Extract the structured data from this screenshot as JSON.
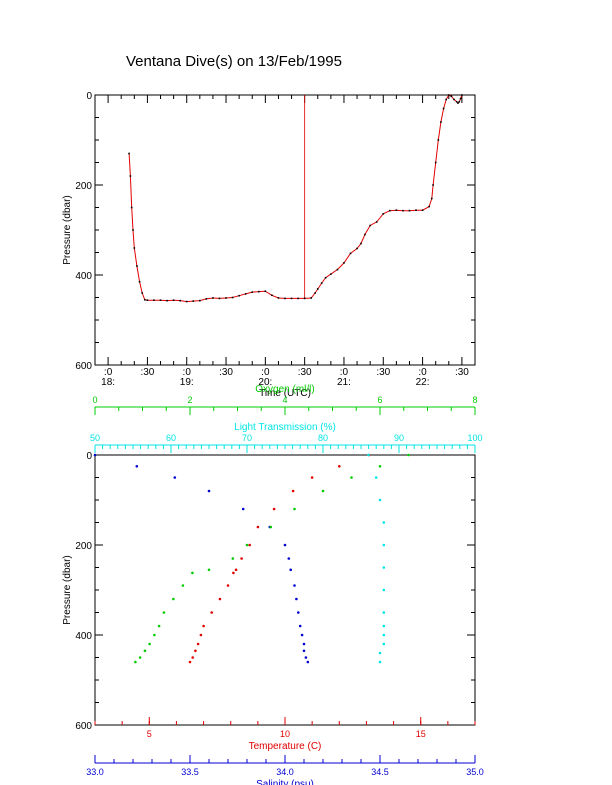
{
  "title": "Ventana Dive(s) on 13/Feb/1995",
  "colors": {
    "axis": "#000000",
    "temperature": "#e00000",
    "salinity": "#0000d0",
    "oxygen": "#00cc00",
    "transmission": "#00e5e5",
    "timeseries_line": "#e00000",
    "timeseries_points": "#000000"
  },
  "chart_data": [
    {
      "type": "line",
      "title": "Ventana Dive(s) on 13/Feb/1995",
      "xlabel": "Time (UTC)",
      "ylabel": "Pressure (dbar)",
      "xlim_minutes": [
        1070,
        1360
      ],
      "ylim": [
        600,
        0
      ],
      "y_ticks": [
        "0",
        "200",
        "400",
        "600"
      ],
      "x_ticks": [
        {
          "minutes": 1080,
          "top": ":0",
          "bottom": "18:"
        },
        {
          "minutes": 1110,
          "top": ":30",
          "bottom": ""
        },
        {
          "minutes": 1140,
          "top": ":0",
          "bottom": "19:"
        },
        {
          "minutes": 1170,
          "top": ":30",
          "bottom": ""
        },
        {
          "minutes": 1200,
          "top": ":0",
          "bottom": "20:"
        },
        {
          "minutes": 1230,
          "top": ":30",
          "bottom": ""
        },
        {
          "minutes": 1260,
          "top": ":0",
          "bottom": "21:"
        },
        {
          "minutes": 1290,
          "top": ":30",
          "bottom": ""
        },
        {
          "minutes": 1320,
          "top": ":0",
          "bottom": "22:"
        },
        {
          "minutes": 1350,
          "top": ":30",
          "bottom": ""
        }
      ],
      "marker_time_minutes": 1230,
      "series": [
        {
          "time_minutes": [
            1096,
            1097,
            1098,
            1099,
            1100,
            1102,
            1104,
            1106,
            1108,
            1110,
            1115,
            1120,
            1125,
            1130,
            1135,
            1140,
            1145,
            1150,
            1155,
            1160,
            1165,
            1170,
            1175,
            1180,
            1185,
            1190,
            1195,
            1200,
            1205,
            1210,
            1215,
            1220,
            1225,
            1230,
            1235,
            1238,
            1240,
            1243,
            1246,
            1250,
            1255,
            1260,
            1265,
            1270,
            1273,
            1276,
            1280,
            1285,
            1290,
            1295,
            1300,
            1305,
            1310,
            1315,
            1320,
            1325,
            1327,
            1328,
            1330,
            1332,
            1334,
            1336,
            1338,
            1340,
            1342,
            1344,
            1346,
            1347,
            1348,
            1349,
            1350
          ],
          "pressure": [
            130,
            180,
            250,
            300,
            340,
            380,
            415,
            440,
            455,
            456,
            456,
            456,
            457,
            456,
            457,
            459,
            458,
            457,
            453,
            451,
            452,
            451,
            450,
            446,
            442,
            438,
            437,
            436,
            445,
            451,
            452,
            452,
            452,
            452,
            451,
            440,
            431,
            418,
            406,
            398,
            388,
            373,
            352,
            341,
            330,
            310,
            290,
            282,
            264,
            257,
            256,
            257,
            257,
            256,
            256,
            248,
            230,
            200,
            150,
            100,
            60,
            30,
            10,
            0,
            3,
            10,
            15,
            18,
            15,
            8,
            0
          ]
        }
      ]
    },
    {
      "type": "scatter",
      "ylabel": "Pressure (dbar)",
      "ylim": [
        600,
        0
      ],
      "y_ticks": [
        "0",
        "200",
        "400",
        "600"
      ],
      "axes": [
        {
          "label": "Oxygen (ml/l)",
          "range": [
            0,
            8
          ],
          "ticks": [
            "0",
            "2",
            "4",
            "6",
            "8"
          ],
          "color": "#00cc00",
          "position": "top-outer"
        },
        {
          "label": "Light Transmission (%)",
          "range": [
            50,
            100
          ],
          "ticks": [
            "50",
            "60",
            "70",
            "80",
            "90",
            "100"
          ],
          "color": "#00e5e5",
          "position": "top-inner"
        },
        {
          "label": "Temperature (C)",
          "range": [
            3,
            17
          ],
          "ticks": [
            "5",
            "10",
            "15"
          ],
          "color": "#e00000",
          "position": "bottom-inner"
        },
        {
          "label": "Salinity (psu)",
          "range": [
            33.0,
            35.0
          ],
          "ticks": [
            "33.0",
            "33.5",
            "34.0",
            "34.5",
            "35.0"
          ],
          "color": "#0000d0",
          "position": "bottom-outer"
        }
      ],
      "series": [
        {
          "variable": "temperature",
          "value": [
            13.1,
            12.0,
            11.0,
            10.3,
            9.6,
            9.0,
            8.7,
            8.4,
            8.2,
            8.1,
            7.9,
            7.6,
            7.3,
            7.0,
            6.9,
            6.8,
            6.7,
            6.6,
            6.5
          ],
          "pressure": [
            0,
            25,
            50,
            80,
            120,
            160,
            200,
            230,
            255,
            262,
            290,
            320,
            350,
            380,
            400,
            420,
            435,
            450,
            460
          ]
        },
        {
          "variable": "salinity",
          "value": [
            33.0,
            33.22,
            33.42,
            33.6,
            33.78,
            33.92,
            34.0,
            34.02,
            34.03,
            34.05,
            34.06,
            34.07,
            34.08,
            34.09,
            34.1,
            34.1,
            34.11,
            34.12
          ],
          "pressure": [
            0,
            25,
            50,
            80,
            120,
            160,
            200,
            230,
            255,
            290,
            320,
            350,
            380,
            400,
            420,
            435,
            450,
            460
          ]
        },
        {
          "variable": "oxygen",
          "value": [
            6.6,
            6.0,
            5.4,
            4.8,
            4.2,
            3.7,
            3.2,
            2.9,
            2.4,
            2.05,
            1.85,
            1.65,
            1.45,
            1.35,
            1.25,
            1.15,
            1.05,
            0.95,
            0.85
          ],
          "pressure": [
            0,
            25,
            50,
            80,
            120,
            160,
            200,
            230,
            255,
            262,
            290,
            320,
            350,
            380,
            400,
            420,
            435,
            450,
            460
          ]
        },
        {
          "variable": "transmission",
          "value": [
            86,
            87,
            87.5,
            88,
            88,
            88,
            88,
            88,
            88,
            88,
            88,
            87.5,
            87.5
          ],
          "pressure": [
            0,
            50,
            100,
            150,
            200,
            250,
            300,
            350,
            380,
            400,
            420,
            440,
            460
          ]
        }
      ]
    }
  ]
}
